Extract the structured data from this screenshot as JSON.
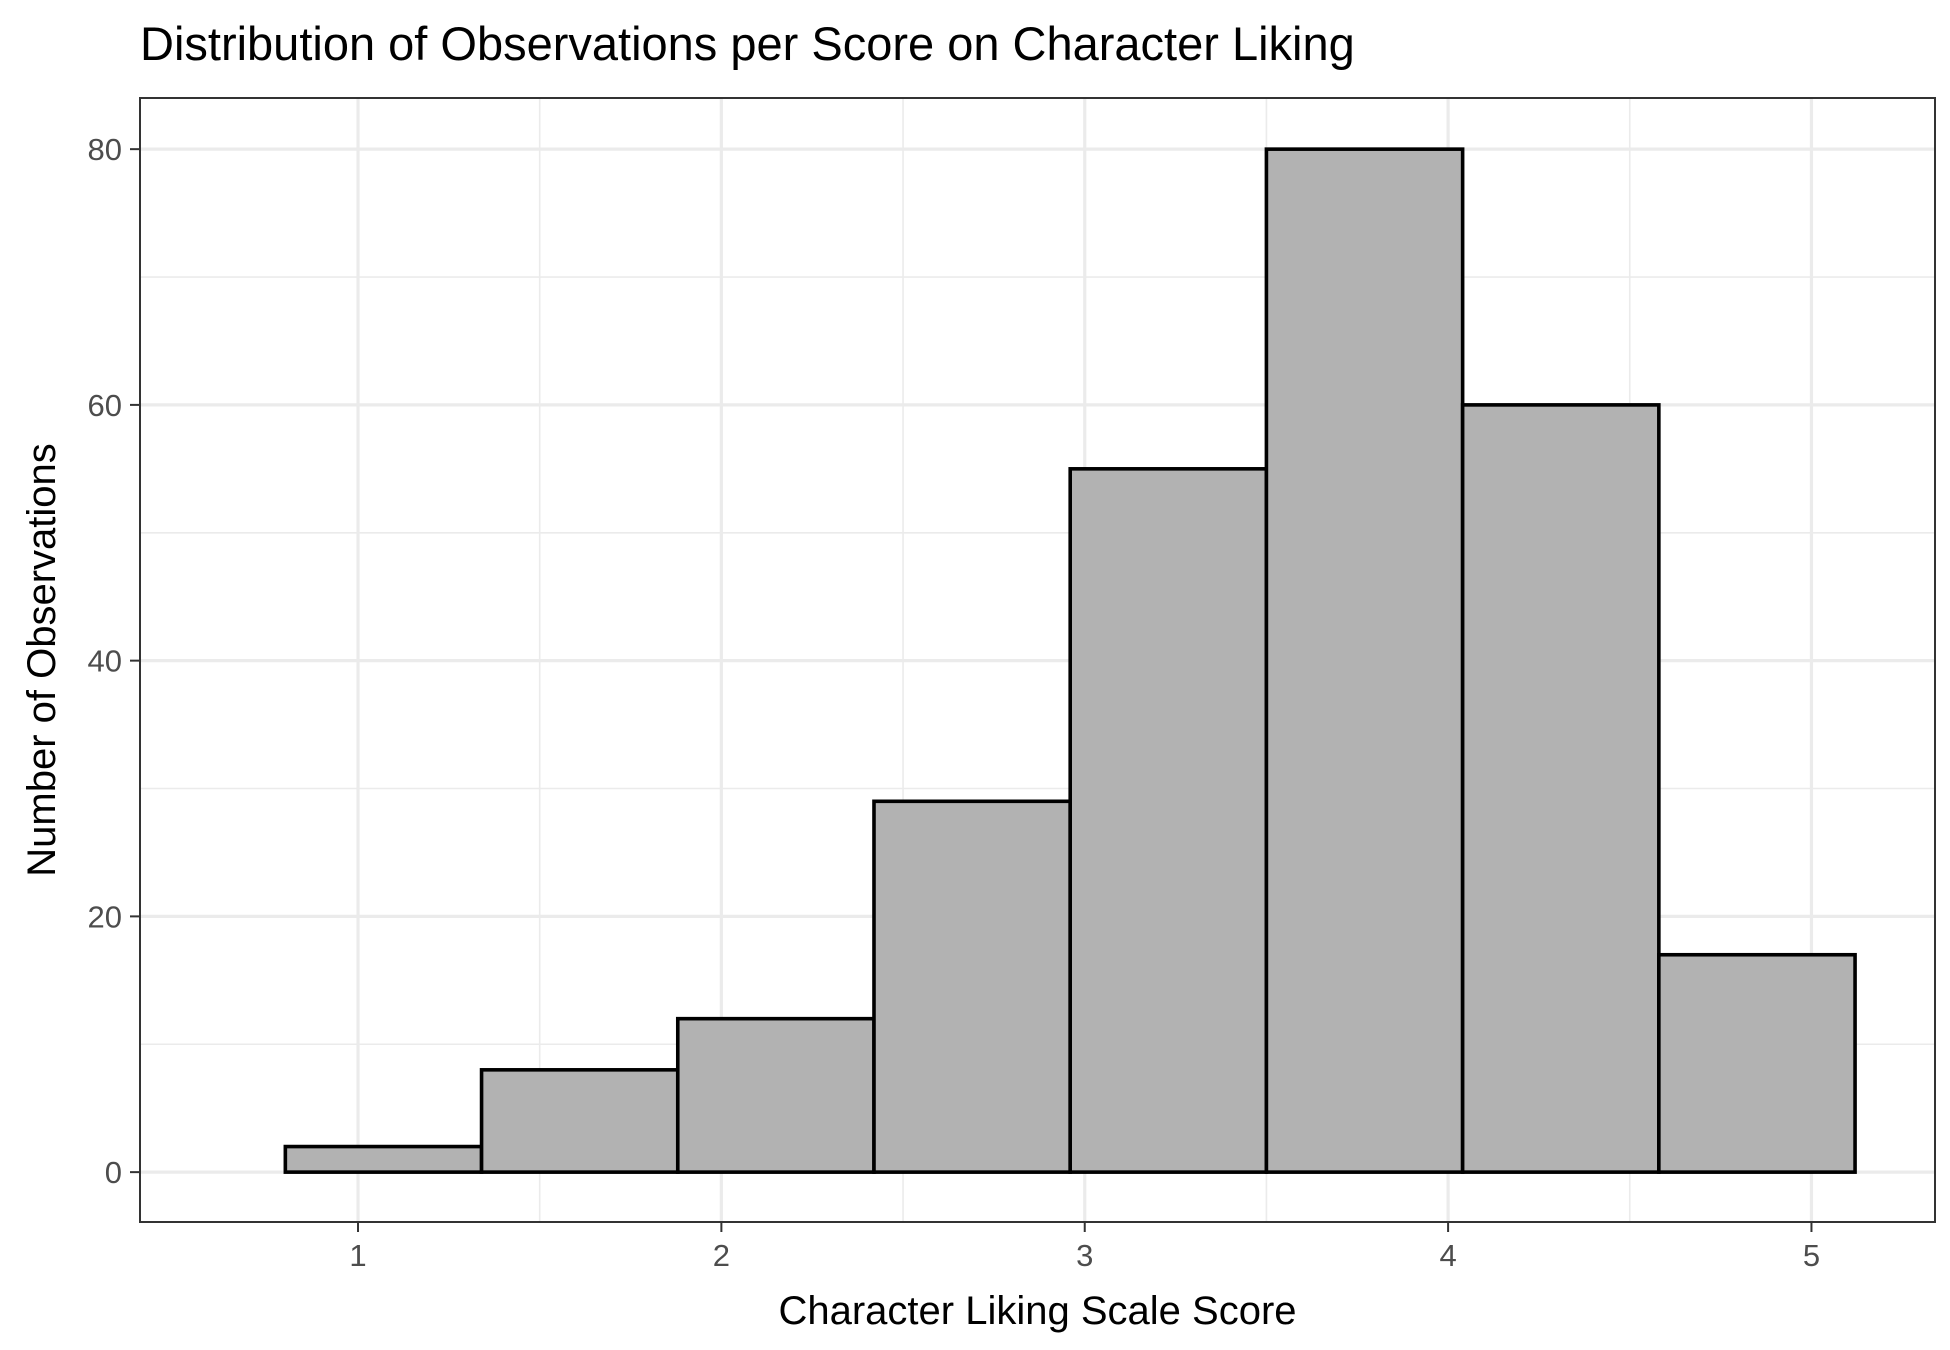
{
  "chart_data": {
    "type": "bar",
    "title": "Distribution of Observations per Score on Character Liking",
    "xlabel": "Character Liking Scale Score",
    "ylabel": "Number of Observations",
    "bins": [
      {
        "x_start": 0.8,
        "x_end": 1.34,
        "count": 2
      },
      {
        "x_start": 1.34,
        "x_end": 1.88,
        "count": 8
      },
      {
        "x_start": 1.88,
        "x_end": 2.42,
        "count": 12
      },
      {
        "x_start": 2.42,
        "x_end": 2.96,
        "count": 29
      },
      {
        "x_start": 2.96,
        "x_end": 3.5,
        "count": 55
      },
      {
        "x_start": 3.5,
        "x_end": 4.04,
        "count": 80
      },
      {
        "x_start": 4.04,
        "x_end": 4.58,
        "count": 60
      },
      {
        "x_start": 4.58,
        "x_end": 5.12,
        "count": 17
      }
    ],
    "x_ticks": [
      1,
      2,
      3,
      4,
      5
    ],
    "x_tick_labels": [
      "1",
      "2",
      "3",
      "4",
      "5"
    ],
    "y_ticks": [
      0,
      20,
      40,
      60,
      80
    ],
    "y_tick_labels": [
      "0",
      "20",
      "40",
      "60",
      "80"
    ],
    "xlim": [
      0.4,
      5.34
    ],
    "ylim": [
      -3.9,
      84
    ],
    "grid": true,
    "bar_fill": "#b2b2b2",
    "bar_outline": "#000000"
  }
}
